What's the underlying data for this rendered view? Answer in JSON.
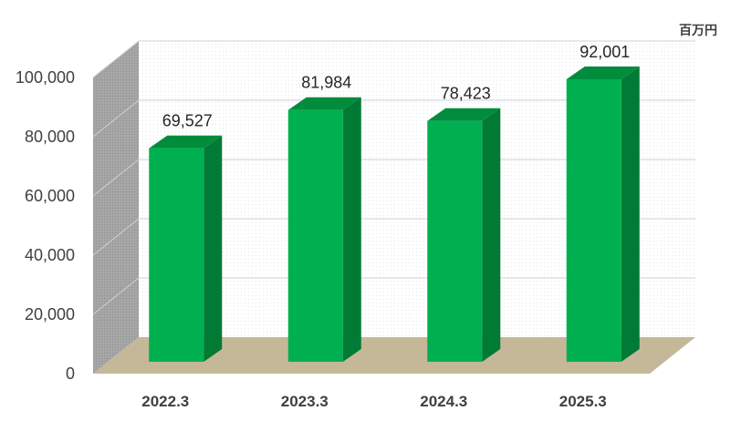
{
  "chart_data": {
    "type": "bar",
    "unit": "百万円",
    "categories": [
      "2022.3",
      "2023.3",
      "2024.3",
      "2025.3"
    ],
    "values": [
      69527,
      81984,
      78423,
      92001
    ],
    "data_labels": [
      "69,527",
      "81,984",
      "78,423",
      "92,001"
    ],
    "y_ticks": [
      "0",
      "20,000",
      "40,000",
      "60,000",
      "80,000",
      "100,000"
    ],
    "y_tick_values": [
      0,
      20000,
      40000,
      60000,
      80000,
      100000
    ],
    "ylim": [
      0,
      100000
    ],
    "grid": true,
    "legend": "none",
    "style": "3d-column"
  },
  "colors": {
    "bar_front": "#00B050",
    "bar_side": "#007A34",
    "bar_top": "#008C3C",
    "floor": "#C4B898",
    "side_wall": "#A6A6A6",
    "back_wall": "#FFFFFF",
    "gridline": "#D9D9D9"
  }
}
